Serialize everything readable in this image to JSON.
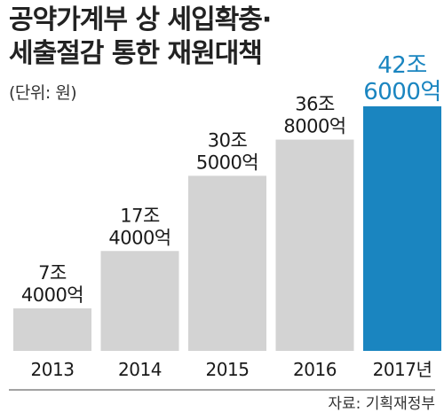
{
  "title_lines": [
    "공약가계부 상 세입확충·",
    "세출절감 통한 재원대책"
  ],
  "unit_label": "(단위: 원)",
  "source": "자료: 기획재정부",
  "colors": {
    "bar_default": "#d3d3d3",
    "bar_highlight": "#1a85c0",
    "label_highlight": "#1a85c0",
    "text": "#1a1a1a",
    "baseline": "#444444"
  },
  "chart_data": {
    "type": "bar",
    "categories": [
      "2013",
      "2014",
      "2015",
      "2016",
      "2017년"
    ],
    "values": [
      74000,
      174000,
      305000,
      368000,
      426000
    ],
    "value_unit": "억원",
    "data_labels": [
      [
        "7조",
        "4000억"
      ],
      [
        "17조",
        "4000억"
      ],
      [
        "30조",
        "5000억"
      ],
      [
        "36조",
        "8000억"
      ],
      [
        "42조",
        "6000억"
      ]
    ],
    "highlight_index": 4,
    "ylim": [
      0,
      426000
    ],
    "grid": false,
    "title": "공약가계부 상 세입확충·세출절감 통한 재원대책",
    "xlabel": "",
    "ylabel": ""
  }
}
